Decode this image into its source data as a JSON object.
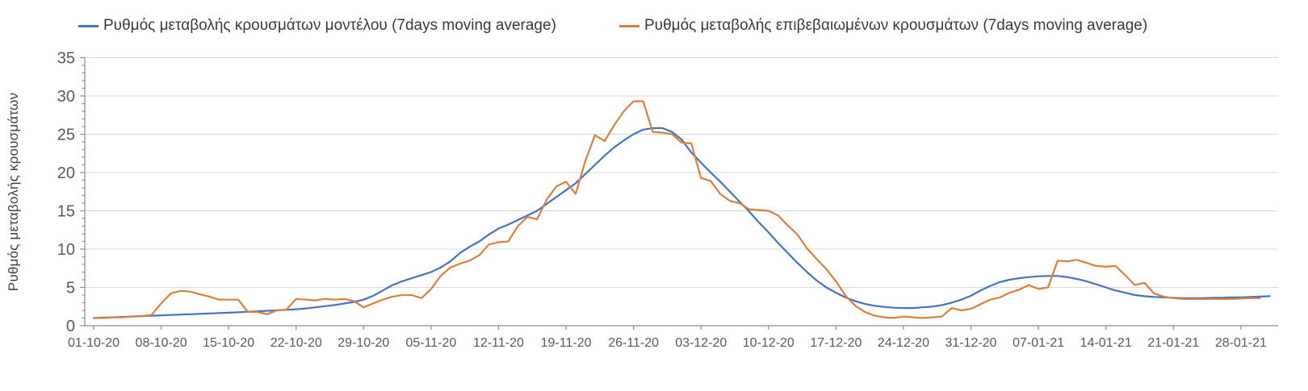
{
  "chart_data": {
    "type": "line",
    "title": "",
    "xlabel": "",
    "ylabel": "Ρυθμός μεταβολής κρουσμάτων",
    "ylim": [
      0,
      35
    ],
    "y_ticks": [
      0,
      5,
      10,
      15,
      20,
      25,
      30,
      35
    ],
    "y_minor_tick_step": 1,
    "grid": "horizontal light-gray lines at each labeled y value",
    "legend_position": "top",
    "x_tick_labels": [
      "01-10-20",
      "08-10-20",
      "15-10-20",
      "22-10-20",
      "29-10-20",
      "05-11-20",
      "12-11-20",
      "19-11-20",
      "26-11-20",
      "03-12-20",
      "10-12-20",
      "17-12-20",
      "24-12-20",
      "31-12-20",
      "07-01-21",
      "14-01-21",
      "21-01-21",
      "28-01-21"
    ],
    "x_days_per_tick": 7,
    "x_unit": "daily points starting 01-10-20",
    "colors": {
      "model_line": "#4472C4",
      "confirmed_line": "#DD7E3B",
      "gridline": "#D9D9D9",
      "axis": "#8C8C8C",
      "tick_text": "#595959"
    },
    "series": [
      {
        "name": "Ρυθμός μεταβολής κρουσμάτων μοντέλου (7days moving average)",
        "color": "#4472C4",
        "shape": "smooth model curve",
        "values": [
          1.0,
          1.05,
          1.1,
          1.15,
          1.2,
          1.25,
          1.3,
          1.35,
          1.4,
          1.45,
          1.5,
          1.55,
          1.6,
          1.65,
          1.7,
          1.76,
          1.82,
          1.88,
          1.95,
          2.0,
          2.07,
          2.15,
          2.25,
          2.4,
          2.55,
          2.7,
          2.9,
          3.1,
          3.4,
          3.9,
          4.6,
          5.3,
          5.8,
          6.2,
          6.6,
          7.0,
          7.6,
          8.4,
          9.5,
          10.3,
          11.0,
          11.9,
          12.7,
          13.2,
          13.8,
          14.4,
          15.0,
          15.9,
          16.8,
          17.7,
          18.6,
          19.8,
          21.0,
          22.2,
          23.3,
          24.2,
          25.0,
          25.6,
          25.8,
          25.8,
          25.3,
          24.3,
          22.6,
          21.3,
          20.0,
          18.8,
          17.5,
          16.2,
          14.9,
          13.5,
          12.2,
          10.8,
          9.5,
          8.2,
          7.0,
          5.9,
          5.0,
          4.3,
          3.7,
          3.2,
          2.85,
          2.6,
          2.45,
          2.35,
          2.3,
          2.3,
          2.4,
          2.5,
          2.7,
          3.0,
          3.4,
          3.9,
          4.6,
          5.2,
          5.7,
          6.0,
          6.2,
          6.35,
          6.45,
          6.5,
          6.5,
          6.35,
          6.1,
          5.8,
          5.4,
          5.0,
          4.6,
          4.3,
          4.0,
          3.85,
          3.75,
          3.7,
          3.65,
          3.6,
          3.6,
          3.6,
          3.65,
          3.65,
          3.7,
          3.7,
          3.75,
          3.8,
          3.85
        ]
      },
      {
        "name": "Ρυθμός μεταβολής επιβεβαιωμένων κρουσμάτων (7days moving average)",
        "color": "#DD7E3B",
        "shape": "jagged daily data",
        "values": [
          1.0,
          1.0,
          1.1,
          1.1,
          1.2,
          1.25,
          1.4,
          2.9,
          4.2,
          4.55,
          4.45,
          4.1,
          3.8,
          3.4,
          3.4,
          3.4,
          1.8,
          1.8,
          1.5,
          2.0,
          2.1,
          3.5,
          3.4,
          3.3,
          3.5,
          3.4,
          3.5,
          3.2,
          2.4,
          2.9,
          3.4,
          3.8,
          4.0,
          4.0,
          3.6,
          4.8,
          6.5,
          7.6,
          8.1,
          8.5,
          9.2,
          10.6,
          10.9,
          11.0,
          13.0,
          14.2,
          13.9,
          16.5,
          18.2,
          18.8,
          17.2,
          21.5,
          24.9,
          24.1,
          26.2,
          28.0,
          29.3,
          29.3,
          25.3,
          25.2,
          25.0,
          23.9,
          23.8,
          19.3,
          18.9,
          17.2,
          16.3,
          16.0,
          15.2,
          15.1,
          15.0,
          14.4,
          13.1,
          11.9,
          10.1,
          8.7,
          7.4,
          5.8,
          3.9,
          2.6,
          1.8,
          1.3,
          1.1,
          1.0,
          1.2,
          1.1,
          1.0,
          1.1,
          1.2,
          2.3,
          2.0,
          2.2,
          2.8,
          3.4,
          3.7,
          4.3,
          4.7,
          5.3,
          4.8,
          5.0,
          8.5,
          8.4,
          8.6,
          8.2,
          7.8,
          7.7,
          7.8,
          6.6,
          5.3,
          5.6,
          4.2,
          3.8,
          3.6,
          3.5,
          3.5,
          3.5,
          3.5,
          3.5,
          3.5,
          3.55,
          3.6,
          3.6
        ]
      }
    ]
  }
}
